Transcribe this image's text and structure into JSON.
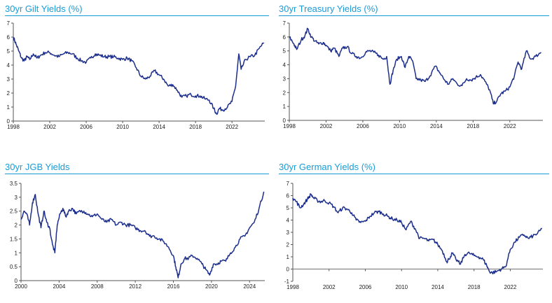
{
  "colors": {
    "title": "#1a9bd7",
    "line": "#1c2e8c",
    "axis": "#555555",
    "zero_line": "#888888"
  },
  "chart_data": [
    {
      "type": "line",
      "title": "30yr Gilt Yields (%)",
      "xlabel": "",
      "ylabel": "",
      "xlim": [
        1998,
        2025.6
      ],
      "ylim": [
        0,
        7
      ],
      "x_ticks": [
        "1998",
        "2002",
        "2006",
        "2010",
        "2014",
        "2018",
        "2022"
      ],
      "y_ticks": [
        "0",
        "1",
        "2",
        "3",
        "4",
        "5",
        "6",
        "7"
      ],
      "grid": false,
      "series": [
        {
          "x": [
            1998,
            1998.3,
            1998.6,
            1998.9,
            1999.2,
            1999.5,
            1999.8,
            2000.2,
            2000.6,
            2001,
            2001.5,
            2002,
            2002.5,
            2003,
            2003.5,
            2004,
            2004.5,
            2005,
            2005.5,
            2006,
            2006.5,
            2007,
            2007.5,
            2008,
            2008.5,
            2009,
            2009.5,
            2010,
            2010.5,
            2011,
            2011.5,
            2012,
            2012.5,
            2013,
            2013.5,
            2014,
            2014.5,
            2015,
            2015.5,
            2016,
            2016.5,
            2017,
            2017.5,
            2018,
            2018.5,
            2019,
            2019.5,
            2020,
            2020.3,
            2020.6,
            2021,
            2021.5,
            2022,
            2022.4,
            2022.75,
            2023,
            2023.5,
            2024,
            2024.5,
            2025,
            2025.5
          ],
          "y": [
            6.0,
            5.5,
            5.0,
            4.5,
            4.3,
            4.6,
            4.4,
            4.8,
            4.5,
            4.7,
            4.9,
            4.9,
            4.7,
            4.6,
            4.8,
            4.9,
            4.8,
            4.5,
            4.3,
            4.2,
            4.5,
            4.8,
            4.7,
            4.6,
            4.6,
            4.6,
            4.5,
            4.4,
            4.5,
            4.3,
            3.8,
            3.2,
            3.0,
            3.2,
            3.6,
            3.3,
            3.0,
            2.5,
            2.6,
            2.2,
            1.7,
            1.8,
            1.9,
            1.8,
            1.8,
            1.6,
            1.5,
            0.9,
            0.5,
            0.9,
            0.8,
            1.0,
            1.4,
            2.5,
            4.8,
            3.7,
            4.4,
            4.6,
            4.7,
            5.2,
            5.6
          ]
        }
      ]
    },
    {
      "type": "line",
      "title": "30yr Treasury Yields (%)",
      "xlabel": "",
      "ylabel": "",
      "xlim": [
        1998,
        2025.6
      ],
      "ylim": [
        0,
        7
      ],
      "x_ticks": [
        "1998",
        "2002",
        "2006",
        "2010",
        "2014",
        "2018",
        "2022"
      ],
      "y_ticks": [
        "0",
        "1",
        "2",
        "3",
        "4",
        "5",
        "6",
        "7"
      ],
      "grid": false,
      "series": [
        {
          "x": [
            1998,
            1998.5,
            1998.8,
            1999.3,
            1999.7,
            2000,
            2000.4,
            2000.8,
            2001.2,
            2001.7,
            2002,
            2002.5,
            2002.9,
            2003.4,
            2003.8,
            2004.3,
            2004.8,
            2005.3,
            2005.8,
            2006.3,
            2006.7,
            2007.2,
            2007.7,
            2008.2,
            2008.6,
            2008.95,
            2009.3,
            2009.7,
            2010.2,
            2010.6,
            2011,
            2011.4,
            2011.8,
            2012.3,
            2012.8,
            2013.3,
            2013.9,
            2014.4,
            2014.9,
            2015.3,
            2015.8,
            2016.3,
            2016.8,
            2017.3,
            2017.8,
            2018.3,
            2018.8,
            2019.3,
            2019.8,
            2020.2,
            2020.6,
            2021,
            2021.5,
            2022,
            2022.5,
            2022.9,
            2023.3,
            2023.8,
            2024.3,
            2024.8,
            2025.4
          ],
          "y": [
            6.0,
            5.5,
            5.1,
            5.8,
            6.1,
            6.6,
            6.0,
            5.7,
            5.5,
            5.6,
            5.4,
            5.0,
            5.2,
            4.6,
            5.2,
            5.3,
            4.8,
            4.6,
            4.5,
            4.9,
            5.0,
            4.9,
            4.7,
            4.4,
            4.6,
            2.6,
            3.6,
            4.4,
            4.6,
            3.8,
            4.6,
            4.3,
            3.0,
            2.9,
            2.8,
            3.2,
            3.9,
            3.4,
            2.9,
            2.6,
            3.0,
            2.6,
            2.5,
            3.0,
            2.9,
            3.1,
            3.3,
            2.8,
            2.2,
            1.2,
            1.4,
            1.9,
            2.1,
            2.4,
            3.2,
            4.2,
            3.7,
            5.0,
            4.4,
            4.6,
            4.9
          ]
        }
      ]
    },
    {
      "type": "line",
      "title": "30yr JGB Yields",
      "xlabel": "",
      "ylabel": "",
      "xlim": [
        2000,
        2025.6
      ],
      "ylim": [
        0,
        3.5
      ],
      "x_ticks": [
        "2000",
        "2004",
        "2008",
        "2012",
        "2016",
        "2020",
        "2024"
      ],
      "y_ticks": [
        "0",
        "0.5",
        "1",
        "1.5",
        "2",
        "2.5",
        "3",
        "3.5"
      ],
      "grid": false,
      "series": [
        {
          "x": [
            2000,
            2000.3,
            2000.6,
            2000.9,
            2001.2,
            2001.5,
            2001.8,
            2002.1,
            2002.4,
            2002.7,
            2003,
            2003.3,
            2003.55,
            2003.8,
            2004.1,
            2004.4,
            2004.7,
            2005,
            2005.4,
            2005.8,
            2006.2,
            2006.6,
            2007,
            2007.5,
            2008,
            2008.5,
            2009,
            2009.5,
            2010,
            2010.5,
            2011,
            2011.5,
            2012,
            2012.5,
            2013,
            2013.5,
            2014,
            2014.5,
            2015,
            2015.5,
            2016,
            2016.25,
            2016.5,
            2016.8,
            2017.2,
            2017.6,
            2018,
            2018.5,
            2019,
            2019.4,
            2019.8,
            2020.2,
            2020.6,
            2021,
            2021.5,
            2022,
            2022.5,
            2023,
            2023.5,
            2024,
            2024.5,
            2025,
            2025.5
          ],
          "y": [
            2.2,
            2.5,
            2.4,
            2.0,
            2.8,
            3.1,
            2.4,
            1.9,
            2.5,
            2.1,
            1.9,
            1.3,
            1.0,
            2.0,
            2.4,
            2.6,
            2.3,
            2.5,
            2.6,
            2.4,
            2.5,
            2.5,
            2.4,
            2.3,
            2.4,
            2.2,
            2.1,
            2.2,
            2.0,
            2.1,
            2.0,
            2.0,
            1.9,
            1.8,
            1.8,
            1.6,
            1.6,
            1.5,
            1.4,
            1.2,
            0.9,
            0.5,
            0.1,
            0.6,
            0.8,
            0.8,
            0.9,
            0.8,
            0.6,
            0.4,
            0.2,
            0.6,
            0.6,
            0.7,
            0.7,
            1.0,
            1.2,
            1.5,
            1.6,
            1.9,
            2.1,
            2.6,
            3.2
          ]
        }
      ]
    },
    {
      "type": "line",
      "title": "30yr German Yields (%)",
      "xlabel": "",
      "ylabel": "",
      "xlim": [
        1998,
        2025.6
      ],
      "ylim": [
        -1,
        7
      ],
      "x_ticks": [
        "1998",
        "2002",
        "2006",
        "2010",
        "2014",
        "2018",
        "2022"
      ],
      "y_ticks": [
        "-1",
        "0",
        "1",
        "2",
        "3",
        "4",
        "5",
        "6",
        "7"
      ],
      "grid": false,
      "series": [
        {
          "x": [
            1998,
            1998.4,
            1998.8,
            1999.2,
            1999.6,
            2000,
            2000.3,
            2000.7,
            2001.1,
            2001.5,
            2002,
            2002.5,
            2003,
            2003.5,
            2004,
            2004.5,
            2005,
            2005.5,
            2006,
            2006.5,
            2007,
            2007.5,
            2008,
            2008.5,
            2009,
            2009.5,
            2010,
            2010.5,
            2011,
            2011.5,
            2012,
            2012.5,
            2013,
            2013.5,
            2014,
            2014.5,
            2015,
            2015.2,
            2015.6,
            2016,
            2016.5,
            2017,
            2017.5,
            2018,
            2018.5,
            2019,
            2019.4,
            2019.7,
            2020,
            2020.5,
            2021,
            2021.5,
            2022,
            2022.5,
            2023,
            2023.5,
            2024,
            2024.5,
            2025,
            2025.5
          ],
          "y": [
            5.8,
            5.5,
            5.0,
            5.3,
            5.7,
            6.1,
            5.8,
            5.6,
            5.5,
            5.6,
            5.4,
            5.1,
            4.6,
            5.0,
            4.9,
            4.6,
            4.0,
            3.8,
            3.9,
            4.3,
            4.6,
            4.7,
            4.5,
            4.3,
            4.1,
            4.0,
            3.8,
            3.2,
            3.9,
            3.3,
            2.5,
            2.5,
            2.3,
            2.4,
            2.0,
            1.5,
            0.6,
            0.8,
            1.3,
            0.8,
            0.4,
            1.2,
            1.3,
            1.1,
            1.0,
            0.8,
            0.3,
            -0.2,
            -0.3,
            -0.2,
            0.0,
            0.2,
            1.6,
            2.2,
            2.6,
            2.8,
            2.5,
            2.7,
            2.9,
            3.3
          ]
        }
      ]
    }
  ]
}
